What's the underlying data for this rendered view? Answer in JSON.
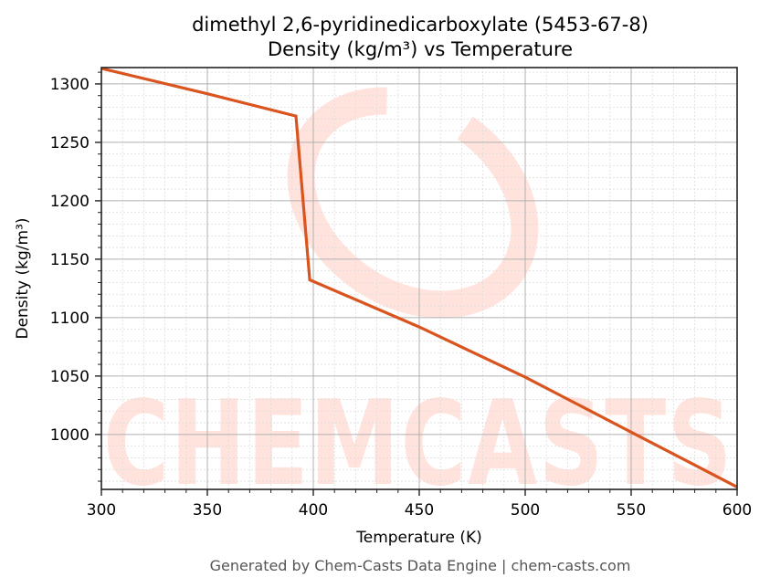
{
  "title": {
    "line1": "dimethyl 2,6-pyridinedicarboxylate (5453-67-8)",
    "line2": "Density (kg/m³) vs Temperature"
  },
  "footer": "Generated by Chem-Casts Data Engine | chem-casts.com",
  "watermark": "CHEMCASTS",
  "colors": {
    "line": "#d9541e",
    "watermark": "#ffe3dc",
    "major_grid": "#b0b0b0",
    "minor_grid": "#dddddd",
    "axis": "#222222"
  },
  "chart_data": {
    "type": "line",
    "title": "dimethyl 2,6-pyridinedicarboxylate (5453-67-8)\nDensity (kg/m³) vs Temperature",
    "xlabel": "Temperature (K)",
    "ylabel": "Density (kg/m³)",
    "xlim": [
      300,
      600
    ],
    "ylim": [
      953,
      1314
    ],
    "xticks": [
      300,
      350,
      400,
      450,
      500,
      550,
      600
    ],
    "yticks": [
      1000,
      1050,
      1100,
      1150,
      1200,
      1250,
      1300
    ],
    "grid": {
      "major": true,
      "minor": true
    },
    "legend": null,
    "series": [
      {
        "name": "Density",
        "x": [
          300,
          350,
          391.8,
          398.3,
          450,
          500,
          550,
          600
        ],
        "y": [
          1313.3,
          1291.6,
          1272.5,
          1132.3,
          1092,
          1049,
          1002,
          955
        ]
      }
    ]
  }
}
